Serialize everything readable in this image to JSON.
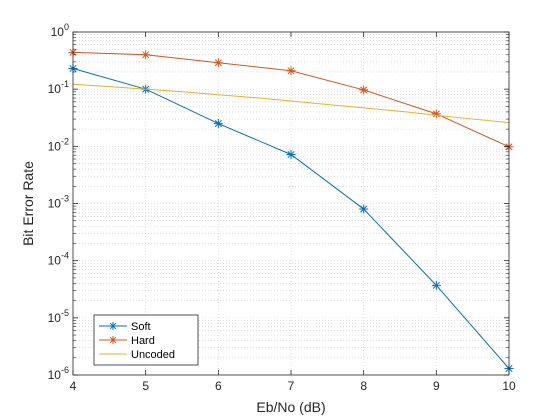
{
  "chart_data": {
    "type": "line",
    "xlabel": "Eb/No (dB)",
    "ylabel": "Bit Error Rate",
    "x_scale": "linear",
    "y_scale": "log",
    "xlim": [
      4,
      10
    ],
    "ylim": [
      1e-06,
      1
    ],
    "x_ticks": [
      4,
      5,
      6,
      7,
      8,
      9,
      10
    ],
    "y_tick_exponents": [
      0,
      -1,
      -2,
      -3,
      -4,
      -5,
      -6
    ],
    "grid": true,
    "minor_grid": true,
    "legend_position": "bottom-left",
    "series": [
      {
        "name": "Soft",
        "color": "#0072BD",
        "marker": "asterisk",
        "x": [
          4,
          5,
          6,
          7,
          8,
          9,
          10
        ],
        "y": [
          0.23,
          0.1,
          0.025,
          0.0072,
          0.0008,
          3.7e-05,
          1.3e-06
        ]
      },
      {
        "name": "Hard",
        "color": "#D95319",
        "marker": "asterisk",
        "x": [
          4,
          5,
          6,
          7,
          8,
          9,
          10
        ],
        "y": [
          0.44,
          0.4,
          0.29,
          0.21,
          0.097,
          0.037,
          0.0098
        ]
      },
      {
        "name": "Uncoded",
        "color": "#EDB120",
        "marker": "none",
        "x": [
          4,
          4.5,
          5,
          5.5,
          6,
          6.5,
          7,
          7.5,
          8,
          8.5,
          9,
          9.5,
          10
        ],
        "y": [
          0.122,
          0.111,
          0.1,
          0.09,
          0.08,
          0.071,
          0.062,
          0.054,
          0.047,
          0.041,
          0.035,
          0.03,
          0.026
        ]
      }
    ]
  }
}
